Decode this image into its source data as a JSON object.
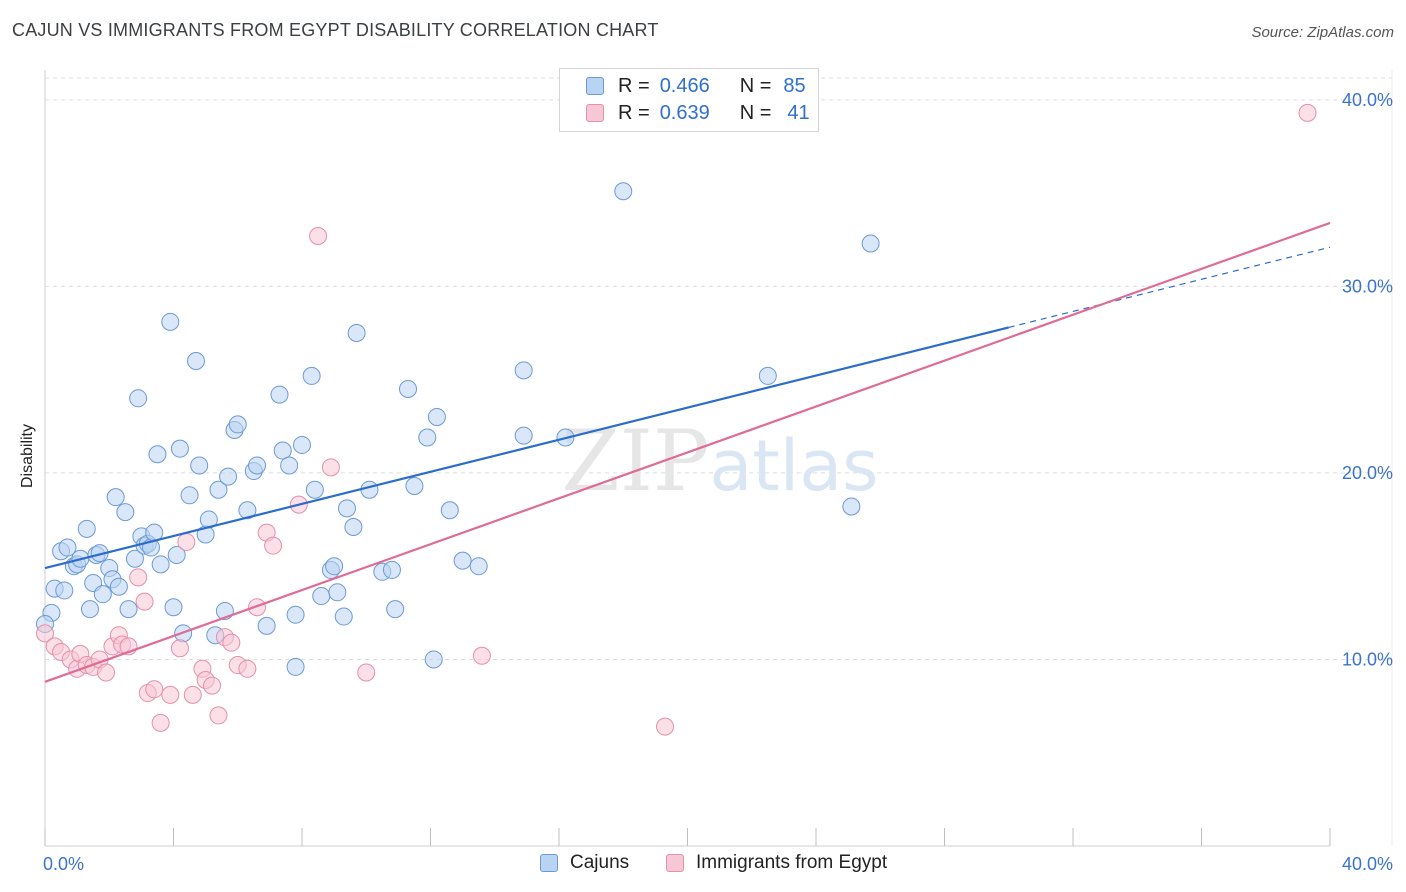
{
  "chart_data": {
    "type": "scatter",
    "title": "CAJUN VS IMMIGRANTS FROM EGYPT DISABILITY CORRELATION CHART",
    "source": "Source: ZipAtlas.com",
    "ylabel": "Disability",
    "xlabel": "",
    "xlim": [
      0,
      40
    ],
    "ylim": [
      0,
      41.6
    ],
    "x_tick_labels": [
      "0.0%",
      "40.0%"
    ],
    "y_ticks": [
      {
        "value": 10,
        "label": "10.0%"
      },
      {
        "value": 20,
        "label": "20.0%"
      },
      {
        "value": 30,
        "label": "30.0%"
      },
      {
        "value": 40,
        "label": "40.0%"
      }
    ],
    "watermark": "ZIPatlas",
    "legend": {
      "rows": [
        {
          "r_label": "R =",
          "r_value": "0.466",
          "n_label": "N =",
          "n_value": "85"
        },
        {
          "r_label": "R =",
          "r_value": "0.639",
          "n_label": "N =",
          "n_value": "41"
        }
      ]
    },
    "series": [
      {
        "name": "Cajuns",
        "color": "#6c9ad4",
        "fill": "#b9d3f3",
        "trend_color": "#2b6ccf",
        "trend": {
          "x0": 0,
          "y0": 14.9,
          "x1": 30,
          "y1": 27.8,
          "dash_to_x": 40,
          "dash_to_y": 32.1
        },
        "points": [
          [
            0.2,
            12.5
          ],
          [
            0.3,
            13.8
          ],
          [
            0.5,
            15.8
          ],
          [
            0.6,
            13.7
          ],
          [
            0.7,
            16.0
          ],
          [
            0.9,
            15.0
          ],
          [
            1.0,
            15.1
          ],
          [
            1.1,
            15.4
          ],
          [
            1.3,
            17.0
          ],
          [
            1.4,
            12.7
          ],
          [
            1.5,
            14.1
          ],
          [
            1.6,
            15.6
          ],
          [
            1.7,
            15.7
          ],
          [
            1.8,
            13.5
          ],
          [
            2.0,
            14.9
          ],
          [
            2.1,
            14.3
          ],
          [
            2.2,
            18.7
          ],
          [
            2.3,
            13.9
          ],
          [
            2.5,
            17.9
          ],
          [
            2.6,
            12.7
          ],
          [
            2.8,
            15.4
          ],
          [
            2.9,
            24.0
          ],
          [
            3.0,
            16.6
          ],
          [
            3.1,
            16.1
          ],
          [
            3.2,
            16.2
          ],
          [
            3.3,
            16.0
          ],
          [
            3.4,
            16.8
          ],
          [
            3.5,
            21.0
          ],
          [
            3.6,
            15.1
          ],
          [
            3.9,
            28.1
          ],
          [
            4.0,
            12.8
          ],
          [
            4.1,
            15.6
          ],
          [
            4.2,
            21.3
          ],
          [
            4.3,
            11.4
          ],
          [
            4.5,
            18.8
          ],
          [
            4.7,
            26.0
          ],
          [
            4.8,
            20.4
          ],
          [
            5.0,
            16.7
          ],
          [
            5.1,
            17.5
          ],
          [
            5.3,
            11.3
          ],
          [
            5.4,
            19.1
          ],
          [
            5.6,
            12.6
          ],
          [
            5.7,
            19.8
          ],
          [
            5.9,
            22.3
          ],
          [
            6.0,
            22.6
          ],
          [
            6.3,
            18.0
          ],
          [
            6.5,
            20.1
          ],
          [
            6.6,
            20.4
          ],
          [
            6.9,
            11.8
          ],
          [
            7.3,
            24.2
          ],
          [
            7.4,
            21.2
          ],
          [
            7.6,
            20.4
          ],
          [
            7.8,
            12.4
          ],
          [
            8.0,
            21.5
          ],
          [
            8.3,
            25.2
          ],
          [
            8.4,
            19.1
          ],
          [
            8.6,
            13.4
          ],
          [
            8.9,
            14.8
          ],
          [
            9.0,
            15.0
          ],
          [
            9.3,
            12.3
          ],
          [
            9.4,
            18.1
          ],
          [
            9.6,
            17.1
          ],
          [
            9.7,
            27.5
          ],
          [
            10.1,
            19.1
          ],
          [
            10.5,
            14.7
          ],
          [
            10.8,
            14.8
          ],
          [
            10.9,
            12.7
          ],
          [
            11.3,
            24.5
          ],
          [
            11.5,
            19.3
          ],
          [
            11.9,
            21.9
          ],
          [
            12.2,
            23.0
          ],
          [
            12.6,
            18.0
          ],
          [
            13.0,
            15.3
          ],
          [
            13.5,
            15.0
          ],
          [
            14.9,
            25.5
          ],
          [
            14.9,
            22.0
          ],
          [
            16.2,
            21.9
          ],
          [
            18.0,
            35.1
          ],
          [
            22.5,
            25.2
          ],
          [
            25.1,
            18.2
          ],
          [
            25.7,
            32.3
          ],
          [
            0.0,
            11.9
          ],
          [
            7.8,
            9.6
          ],
          [
            9.1,
            13.6
          ],
          [
            12.1,
            10.0
          ]
        ]
      },
      {
        "name": "Immigrants from Egypt",
        "color": "#e58fab",
        "fill": "#f8c7d6",
        "trend_color": "#e06b95",
        "trend": {
          "x0": 0,
          "y0": 8.8,
          "x1": 40,
          "y1": 33.4
        },
        "points": [
          [
            0.0,
            11.4
          ],
          [
            0.3,
            10.7
          ],
          [
            0.5,
            10.4
          ],
          [
            0.8,
            10.0
          ],
          [
            1.0,
            9.5
          ],
          [
            1.1,
            10.3
          ],
          [
            1.3,
            9.7
          ],
          [
            1.5,
            9.6
          ],
          [
            1.7,
            10.0
          ],
          [
            1.9,
            9.3
          ],
          [
            2.1,
            10.7
          ],
          [
            2.3,
            11.3
          ],
          [
            2.4,
            10.8
          ],
          [
            2.6,
            10.7
          ],
          [
            2.9,
            14.4
          ],
          [
            3.1,
            13.1
          ],
          [
            3.2,
            8.2
          ],
          [
            3.4,
            8.4
          ],
          [
            3.6,
            6.6
          ],
          [
            3.9,
            8.1
          ],
          [
            4.2,
            10.6
          ],
          [
            4.4,
            16.3
          ],
          [
            4.6,
            8.1
          ],
          [
            4.9,
            9.5
          ],
          [
            5.0,
            8.9
          ],
          [
            5.2,
            8.6
          ],
          [
            5.4,
            7.0
          ],
          [
            5.6,
            11.2
          ],
          [
            5.8,
            10.9
          ],
          [
            6.0,
            9.7
          ],
          [
            6.3,
            9.5
          ],
          [
            6.6,
            12.8
          ],
          [
            6.9,
            16.8
          ],
          [
            7.1,
            16.1
          ],
          [
            7.9,
            18.3
          ],
          [
            8.5,
            32.7
          ],
          [
            8.9,
            20.3
          ],
          [
            10.0,
            9.3
          ],
          [
            13.6,
            10.2
          ],
          [
            19.3,
            6.4
          ],
          [
            39.3,
            39.3
          ]
        ]
      }
    ]
  },
  "bottom_legend": [
    "Cajuns",
    "Immigrants from Egypt"
  ]
}
